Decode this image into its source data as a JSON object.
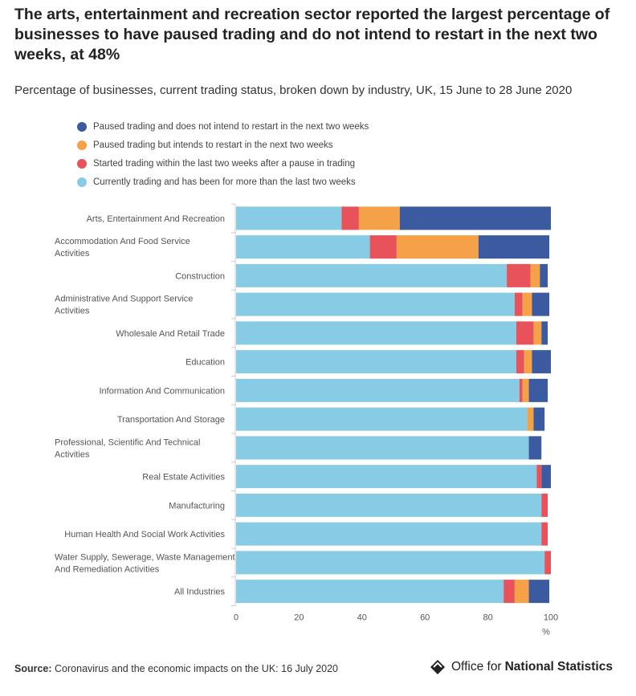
{
  "title": "The arts, entertainment and recreation sector reported the largest percentage of businesses to have paused trading and do not intend to restart in the next two weeks, at 48%",
  "subtitle": "Percentage of businesses, current trading status, broken down by industry, UK, 15 June to 28 June 2020",
  "source": {
    "label": "Source:",
    "text": "Coronavirus and the economic impacts on the UK: 16 July 2020"
  },
  "logo": {
    "text_plain": "Office for",
    "text_bold": "National Statistics",
    "icon": "ons-logo-icon"
  },
  "chart_data": {
    "type": "bar",
    "orientation": "horizontal",
    "stacked": true,
    "categories": [
      "Arts, Entertainment And Recreation",
      "Accommodation And Food Service Activities",
      "Construction",
      "Administrative And Support Service Activities",
      "Wholesale And Retail Trade",
      "Education",
      "Information And Communication",
      "Transportation And Storage",
      "Professional, Scientific And Technical Activities",
      "Real Estate Activities",
      "Manufacturing",
      "Human Health And Social Work Activities",
      "Water Supply, Sewerage, Waste Management And Remediation Activities",
      "All Industries"
    ],
    "series": [
      {
        "name": "Currently trading and has been for more than the last two weeks",
        "color": "#87cbe4",
        "values": [
          33.5,
          42.5,
          86,
          88.5,
          89,
          89,
          90,
          92.5,
          93,
          95.5,
          97,
          97,
          98,
          85
        ]
      },
      {
        "name": "Started trading within the last two weeks after a pause in trading",
        "color": "#e8525a",
        "values": [
          5.5,
          8.5,
          7.5,
          2.5,
          5.5,
          2.5,
          1,
          0,
          0,
          1.5,
          2,
          2,
          2,
          3.5
        ]
      },
      {
        "name": "Paused trading but intends to restart in the next two weeks",
        "color": "#f5a147",
        "values": [
          13,
          26,
          3,
          3,
          2.5,
          2.5,
          2,
          2,
          0,
          0,
          0,
          0,
          0,
          4.5
        ]
      },
      {
        "name": "Paused trading and does not intend to restart in the next two weeks",
        "color": "#3b5aa0",
        "values": [
          48,
          22.5,
          2.5,
          5.5,
          2,
          6,
          6,
          3.5,
          4,
          3,
          0,
          0,
          0,
          6.5
        ]
      }
    ],
    "legend_order": [
      3,
      2,
      1,
      0
    ],
    "x_ticks": [
      0,
      20,
      40,
      60,
      80,
      100
    ],
    "xlim": [
      0,
      100
    ],
    "xlabel": "%",
    "ylabel": "",
    "legend_position": "top-left",
    "grid": false
  }
}
